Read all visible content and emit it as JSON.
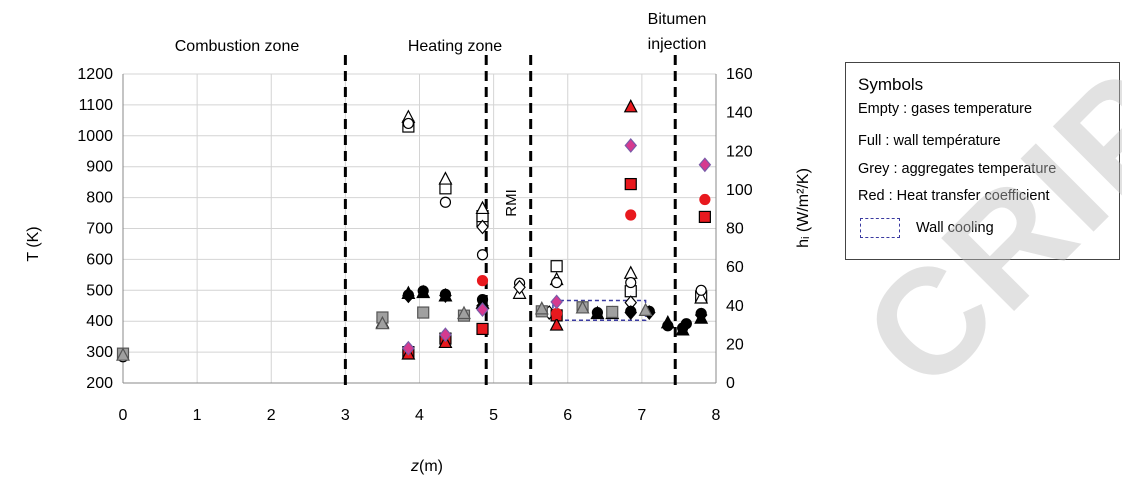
{
  "chart_data": {
    "type": "scatter",
    "xlabel_italic": "z",
    "xlabel_rest": " (m)",
    "ylabel_left": "T (K)",
    "ylabel_right": "hᵢ (W/m²/K)",
    "xlim": [
      0,
      8
    ],
    "ylim_left": [
      200,
      1200
    ],
    "ylim_right": [
      0,
      160
    ],
    "x_ticks": [
      "0",
      "1",
      "2",
      "3",
      "4",
      "5",
      "6",
      "7",
      "8"
    ],
    "y_left_ticks": [
      "200",
      "300",
      "400",
      "500",
      "600",
      "700",
      "800",
      "900",
      "1000",
      "1100",
      "1200"
    ],
    "y_right_ticks": [
      "0",
      "20",
      "40",
      "60",
      "80",
      "100",
      "120",
      "140",
      "160"
    ],
    "zone_lines_x": [
      3.0,
      4.9,
      5.5,
      7.45
    ],
    "zone_labels": [
      "Combustion zone",
      "Heating zone",
      "RMI",
      "Bitumen",
      "injection"
    ],
    "wall_cooling_box": {
      "x": [
        5.8,
        7.05
      ],
      "y_left": [
        403,
        467
      ]
    },
    "grid": true,
    "series": [
      {
        "name": "Empty : gases temperature",
        "marker": "square",
        "fill": "#ffffff",
        "points": [
          [
            3.85,
            1030
          ],
          [
            4.35,
            830
          ],
          [
            4.85,
            725
          ],
          [
            4.85,
            740
          ],
          [
            5.85,
            578
          ],
          [
            6.85,
            497
          ],
          [
            7.8,
            480
          ]
        ]
      },
      {
        "name": "Empty : gases temperature",
        "marker": "triangle",
        "fill": "#ffffff",
        "points": [
          [
            3.85,
            1060
          ],
          [
            4.35,
            860
          ],
          [
            4.85,
            765
          ],
          [
            5.35,
            490
          ],
          [
            5.85,
            535
          ],
          [
            6.85,
            555
          ],
          [
            7.8,
            475
          ],
          [
            3.5,
            395
          ]
        ]
      },
      {
        "name": "Empty : gases temperature",
        "marker": "circle",
        "fill": "#ffffff",
        "points": [
          [
            3.85,
            1040
          ],
          [
            4.35,
            785
          ],
          [
            4.85,
            615
          ],
          [
            5.35,
            523
          ],
          [
            5.85,
            525
          ],
          [
            6.85,
            525
          ],
          [
            7.8,
            500
          ],
          [
            0.0,
            285
          ]
        ]
      },
      {
        "name": "Empty : gases temperature",
        "marker": "diamond",
        "fill": "#ffffff",
        "points": [
          [
            4.85,
            705
          ],
          [
            5.35,
            510
          ],
          [
            5.75,
            428
          ],
          [
            6.85,
            460
          ]
        ]
      },
      {
        "name": "Full : wall température",
        "marker": "circle",
        "fill": "#000000",
        "points": [
          [
            3.85,
            485
          ],
          [
            4.05,
            498
          ],
          [
            4.35,
            487
          ],
          [
            4.85,
            470
          ],
          [
            6.4,
            428
          ],
          [
            6.6,
            428
          ],
          [
            6.85,
            432
          ],
          [
            7.1,
            432
          ],
          [
            7.35,
            385
          ],
          [
            7.55,
            378
          ],
          [
            7.6,
            392
          ],
          [
            7.8,
            425
          ]
        ]
      },
      {
        "name": "Full : wall température",
        "marker": "triangle",
        "fill": "#000000",
        "points": [
          [
            3.85,
            490
          ],
          [
            4.05,
            493
          ],
          [
            4.35,
            482
          ],
          [
            4.85,
            458
          ],
          [
            6.4,
            425
          ],
          [
            6.6,
            425
          ],
          [
            7.35,
            395
          ],
          [
            7.55,
            372
          ],
          [
            7.8,
            410
          ]
        ]
      },
      {
        "name": "Full : wall température",
        "marker": "diamond",
        "fill": "#000000",
        "points": [
          [
            3.85,
            482
          ],
          [
            4.35,
            483
          ],
          [
            4.85,
            450
          ],
          [
            6.85,
            428
          ],
          [
            7.1,
            428
          ],
          [
            7.8,
            420
          ]
        ]
      },
      {
        "name": "Grey : aggregates temperature",
        "marker": "square",
        "fill": "#a0a0a0",
        "points": [
          [
            0.0,
            295
          ],
          [
            3.5,
            412
          ],
          [
            4.05,
            428
          ],
          [
            4.6,
            418
          ],
          [
            5.65,
            432
          ],
          [
            6.2,
            445
          ],
          [
            6.6,
            430
          ]
        ]
      },
      {
        "name": "Grey : aggregates temperature",
        "marker": "triangle",
        "fill": "#a0a0a0",
        "points": [
          [
            0.0,
            290
          ],
          [
            3.5,
            392
          ],
          [
            4.6,
            425
          ],
          [
            5.65,
            440
          ],
          [
            6.2,
            443
          ],
          [
            7.05,
            435
          ]
        ]
      },
      {
        "name": "Red : Heat transfer coefficient",
        "marker": "square",
        "fill": "#e8191e",
        "axis": "right",
        "points": [
          [
            3.85,
            16
          ],
          [
            4.35,
            23
          ],
          [
            4.85,
            28
          ],
          [
            5.85,
            35
          ],
          [
            6.85,
            103
          ],
          [
            7.85,
            86
          ]
        ]
      },
      {
        "name": "Red : Heat transfer coefficient",
        "marker": "triangle",
        "fill": "#e8191e",
        "axis": "right",
        "points": [
          [
            3.85,
            15
          ],
          [
            4.35,
            21
          ],
          [
            5.85,
            30
          ],
          [
            6.85,
            143
          ]
        ]
      },
      {
        "name": "Red : Heat transfer coefficient",
        "marker": "circle",
        "fill": "#e8191e",
        "axis": "right",
        "points": [
          [
            4.85,
            53
          ],
          [
            5.85,
            36
          ],
          [
            6.85,
            87
          ],
          [
            7.85,
            95
          ]
        ]
      },
      {
        "name": "Red : Heat transfer coefficient",
        "marker": "diamond",
        "fill": "#d63a8f",
        "axis": "right",
        "points": [
          [
            3.85,
            18
          ],
          [
            4.35,
            25
          ],
          [
            4.85,
            38
          ],
          [
            5.85,
            42
          ],
          [
            6.85,
            123
          ],
          [
            7.85,
            113
          ]
        ]
      }
    ]
  },
  "legend": {
    "title": "Symbols",
    "lines": [
      "Empty : gases temperature",
      "Full : wall température",
      "Grey : aggregates temperature",
      "Red : Heat transfer coefficient"
    ],
    "wall_cooling": "Wall cooling"
  },
  "watermark": "CRIP"
}
